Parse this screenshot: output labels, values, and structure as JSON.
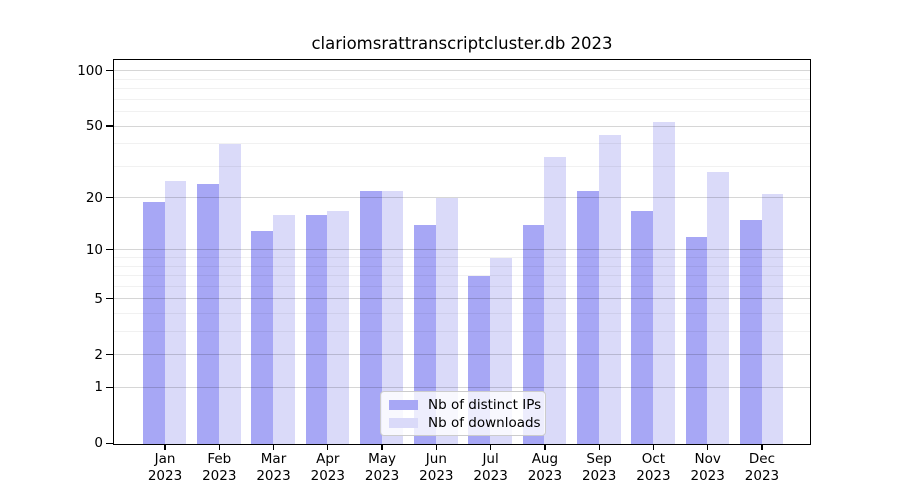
{
  "chart_data": {
    "type": "bar",
    "title": "clariomsrattranscriptcluster.db 2023",
    "categories": [
      "Jan",
      "Feb",
      "Mar",
      "Apr",
      "May",
      "Jun",
      "Jul",
      "Aug",
      "Sep",
      "Oct",
      "Nov",
      "Dec"
    ],
    "year_label": "2023",
    "series": [
      {
        "name": "Nb of distinct IPs",
        "color": "#a7a7f5",
        "values": [
          19,
          24,
          13,
          16,
          22,
          14,
          7,
          14,
          22,
          17,
          12,
          15
        ]
      },
      {
        "name": "Nb of downloads",
        "color": "#dadaf9",
        "values": [
          25,
          40,
          16,
          17,
          22,
          20,
          9,
          34,
          45,
          53,
          28,
          21
        ]
      }
    ],
    "xlabel": "",
    "ylabel": "",
    "yscale": "log1p",
    "ylim": [
      0,
      115
    ],
    "yticks": [
      0,
      1,
      2,
      5,
      10,
      20,
      50,
      100
    ],
    "yticks_minor": [
      3,
      4,
      6,
      7,
      8,
      9,
      30,
      40,
      60,
      70,
      80,
      90
    ],
    "grid": true,
    "grid_over_bars": true,
    "legend_position": "bottom-center"
  }
}
